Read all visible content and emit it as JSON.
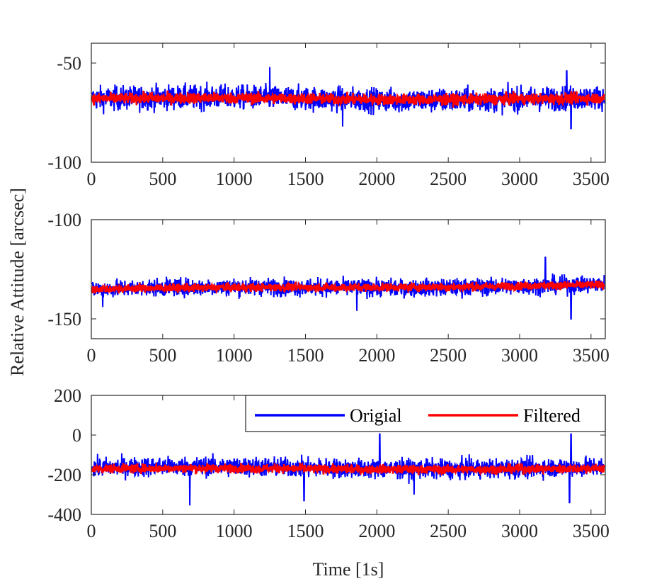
{
  "chart_data": {
    "type": "line",
    "ylabel": "Relative Attitude [arcsec]",
    "xlabel": "Time [1s]",
    "legend": {
      "placement": "top-right of bottom panel",
      "entries": [
        {
          "name": "Origial",
          "color": "#0000ff"
        },
        {
          "name": "Filtered",
          "color": "#ff0000"
        }
      ]
    },
    "grid": false,
    "panels": [
      {
        "xlim": [
          0,
          3600
        ],
        "ylim": [
          -100,
          -40
        ],
        "xticks": [
          "0",
          "500",
          "1000",
          "1500",
          "2000",
          "2500",
          "3000",
          "3500"
        ],
        "xtick_values": [
          0,
          500,
          1000,
          1500,
          2000,
          2500,
          3000,
          3500
        ],
        "yticks": [
          "-50",
          "-100"
        ],
        "ytick_values": [
          -50,
          -100
        ],
        "series": [
          {
            "name": "Origial",
            "color": "#0000ff",
            "mean": -68,
            "spread": 5.5,
            "spikes": [
              [
                1250,
                -52
              ],
              [
                1760,
                -82
              ],
              [
                3360,
                -83
              ],
              [
                3330,
                -54
              ]
            ]
          },
          {
            "name": "Filtered",
            "color": "#ff0000",
            "mean": -68,
            "spread": 2.5
          }
        ]
      },
      {
        "xlim": [
          0,
          3600
        ],
        "ylim": [
          -160,
          -100
        ],
        "xticks": [
          "0",
          "500",
          "1000",
          "1500",
          "2000",
          "2500",
          "3000",
          "3500"
        ],
        "xtick_values": [
          0,
          500,
          1000,
          1500,
          2000,
          2500,
          3000,
          3500
        ],
        "yticks": [
          "-100",
          "-150"
        ],
        "ytick_values": [
          -100,
          -150
        ],
        "series": [
          {
            "name": "Origial",
            "color": "#0000ff",
            "mean": -135,
            "spread": 4,
            "spikes": [
              [
                3180,
                -119
              ],
              [
                3360,
                -150
              ],
              [
                80,
                -144
              ],
              [
                1860,
                -146
              ]
            ]
          },
          {
            "name": "Filtered",
            "color": "#ff0000",
            "mean": -135,
            "spread": 1.8
          }
        ]
      },
      {
        "xlim": [
          0,
          3600
        ],
        "ylim": [
          -400,
          200
        ],
        "xticks": [
          "0",
          "500",
          "1000",
          "1500",
          "2000",
          "2500",
          "3000",
          "3500"
        ],
        "xtick_values": [
          0,
          500,
          1000,
          1500,
          2000,
          2500,
          3000,
          3500
        ],
        "yticks": [
          "200",
          "0",
          "-200",
          "-400"
        ],
        "ytick_values": [
          200,
          0,
          -200,
          -400
        ],
        "series": [
          {
            "name": "Origial",
            "color": "#0000ff",
            "mean": -165,
            "spread": 45,
            "spikes": [
              [
                690,
                -355
              ],
              [
                2020,
                5
              ],
              [
                3360,
                5
              ],
              [
                3350,
                -340
              ],
              [
                1490,
                -330
              ],
              [
                2260,
                -300
              ]
            ]
          },
          {
            "name": "Filtered",
            "color": "#ff0000",
            "mean": -170,
            "spread": 20
          }
        ]
      }
    ]
  }
}
